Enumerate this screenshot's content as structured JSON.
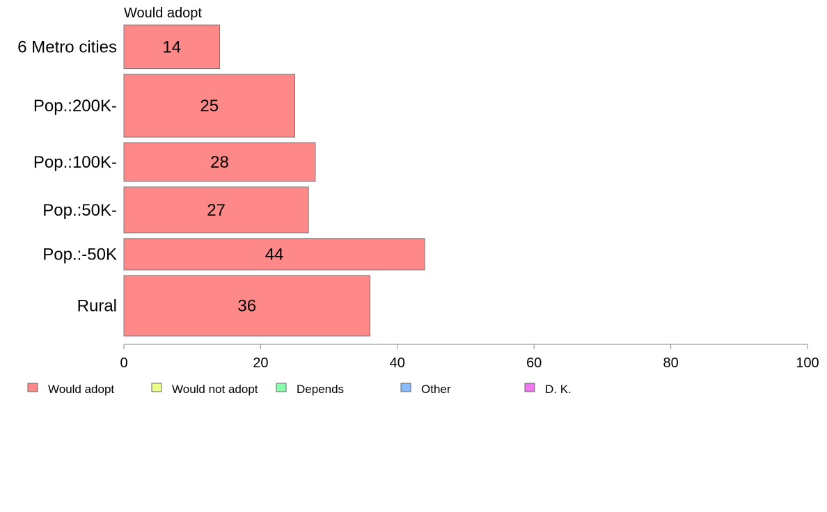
{
  "chart_data": {
    "type": "bar",
    "orientation": "horizontal",
    "title": "Would adopt",
    "categories": [
      "6 Metro cities",
      "Pop.:200K-",
      "Pop.:100K-",
      "Pop.:50K-",
      "Pop.:-50K",
      "Rural"
    ],
    "series": [
      {
        "name": "Would adopt",
        "values": [
          14,
          25,
          28,
          27,
          44,
          36
        ]
      }
    ],
    "relative_bar_heights": [
      0.9,
      1.3,
      0.8,
      0.95,
      0.65,
      1.25
    ],
    "xlim": [
      0,
      100
    ],
    "xticks": [
      0,
      20,
      40,
      60,
      80,
      100
    ],
    "xlabel": "",
    "ylabel": "",
    "grid": false,
    "legend": {
      "placement": "bottom-left",
      "entries": [
        {
          "label": "Would adopt",
          "color": "#ff8888"
        },
        {
          "label": "Would not adopt",
          "color": "#eeff88"
        },
        {
          "label": "Depends",
          "color": "#88ffaa"
        },
        {
          "label": "Other",
          "color": "#88bbff"
        },
        {
          "label": "D. K.",
          "color": "#ee77ee"
        }
      ]
    },
    "colors": {
      "bar": "#ff8888",
      "bar_border": "#777777",
      "axis": "#888888"
    }
  }
}
